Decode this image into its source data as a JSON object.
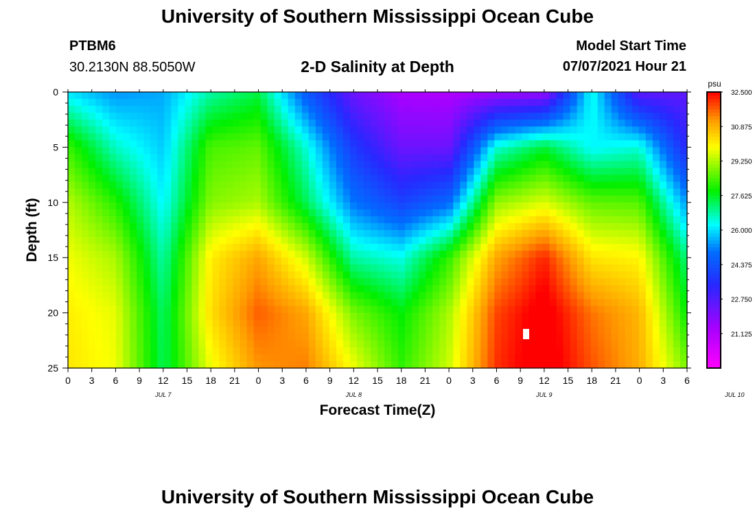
{
  "header": {
    "title": "University of Southern Mississippi Ocean Cube",
    "station": "PTBM6",
    "coords": "30.2130N  88.5050W",
    "subtitle": "2-D Salinity at Depth",
    "model_start_label": "Model Start Time",
    "model_start_value": "07/07/2021 Hour 21"
  },
  "footer": {
    "title": "University of Southern Mississippi Ocean Cube"
  },
  "chart_data": {
    "type": "heatmap",
    "title": "2-D Salinity at Depth",
    "xlabel": "Forecast Time(Z)",
    "ylabel": "Depth (ft)",
    "x_tick_labels": [
      "0",
      "3",
      "6",
      "9",
      "12",
      "15",
      "18",
      "21",
      "0",
      "3",
      "6",
      "9",
      "12",
      "15",
      "18",
      "21",
      "0",
      "3",
      "6",
      "9",
      "12",
      "15",
      "18",
      "21",
      "0",
      "3",
      "6"
    ],
    "date_labels": [
      "JUL 7",
      "JUL 8",
      "JUL 9",
      "JUL 10"
    ],
    "date_label_ticks": [
      4,
      12,
      20,
      28
    ],
    "y_ticks": [
      0,
      5,
      10,
      15,
      20,
      25
    ],
    "ylim": [
      25,
      0
    ],
    "x_range_hours": [
      0,
      78
    ],
    "colorbar": {
      "unit": "psu",
      "labels": [
        "32.500",
        "30.875",
        "29.250",
        "27.625",
        "26.000",
        "24.375",
        "22.750",
        "21.125"
      ],
      "range": [
        19.5,
        32.5
      ]
    },
    "grid": false,
    "depths_ft": [
      0,
      5,
      10,
      15,
      20,
      25
    ],
    "times_hours": [
      0,
      6,
      12,
      18,
      24,
      30,
      36,
      42,
      48,
      54,
      60,
      66,
      72,
      78
    ],
    "salinity": [
      [
        26.0,
        25.3,
        25.5,
        26.8,
        27.4,
        24.5,
        22.3,
        21.3,
        21.2,
        21.5,
        21.6,
        26.4,
        22.5,
        22.5
      ],
      [
        28.3,
        26.6,
        25.8,
        28.4,
        28.6,
        26.5,
        23.8,
        22.3,
        22.3,
        26.5,
        27.5,
        26.2,
        26.5,
        23.3
      ],
      [
        29.3,
        28.1,
        26.2,
        28.9,
        29.2,
        27.3,
        25.0,
        24.0,
        24.8,
        29.0,
        29.6,
        28.6,
        28.5,
        25.3
      ],
      [
        29.8,
        29.2,
        26.8,
        30.1,
        31.0,
        29.5,
        26.8,
        26.4,
        28.2,
        31.0,
        32.2,
        30.2,
        30.0,
        27.0
      ],
      [
        30.1,
        29.7,
        27.2,
        30.3,
        31.7,
        31.0,
        28.8,
        27.8,
        29.2,
        31.9,
        32.8,
        31.5,
        30.8,
        27.8
      ],
      [
        30.2,
        29.8,
        27.3,
        29.8,
        31.2,
        31.4,
        29.8,
        28.2,
        29.5,
        32.1,
        32.9,
        31.8,
        30.9,
        28.8
      ]
    ]
  }
}
